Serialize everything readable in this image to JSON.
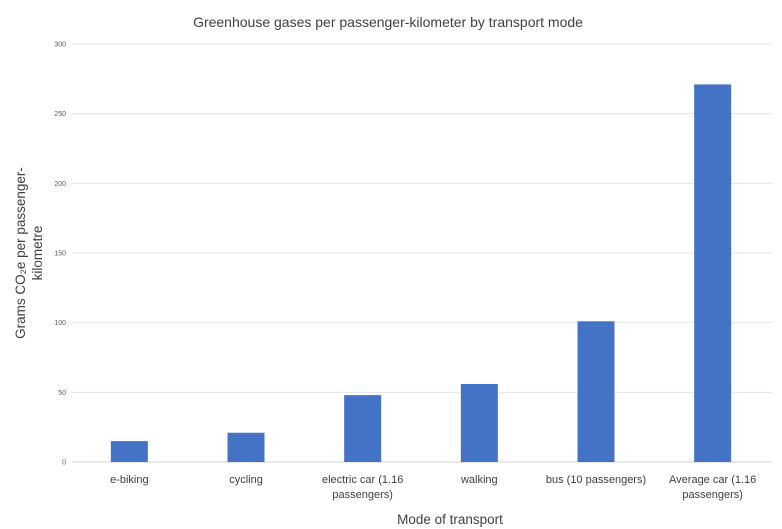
{
  "chart_data": {
    "type": "bar",
    "title": "Greenhouse gases per passenger-kilometer by transport mode",
    "xlabel": "Mode of transport",
    "ylabel": [
      "Grams CO₂e per passenger-",
      "kilometre"
    ],
    "categories": [
      [
        "e-biking"
      ],
      [
        "cycling"
      ],
      [
        "electric car (1.16",
        "passengers)"
      ],
      [
        "walking"
      ],
      [
        "bus (10 passengers)"
      ],
      [
        "Average car (1.16",
        "passengers)"
      ]
    ],
    "values": [
      15,
      21,
      48,
      56,
      101,
      271
    ],
    "ylim": [
      0,
      300
    ],
    "yticks": [
      0,
      50,
      100,
      150,
      200,
      250,
      300
    ],
    "grid": true,
    "legend": "none",
    "bar_color": "#4472c4"
  }
}
